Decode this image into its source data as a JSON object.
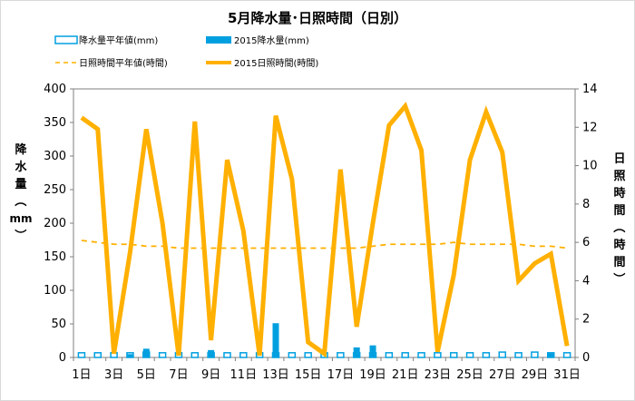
{
  "chart_data": {
    "type": "bar+line",
    "title": "5月降水量･日照時間（日別）",
    "x_ticks": [
      "1日",
      "3日",
      "5日",
      "7日",
      "9日",
      "11日",
      "13日",
      "15日",
      "17日",
      "19日",
      "21日",
      "23日",
      "25日",
      "27日",
      "29日",
      "31日"
    ],
    "days": [
      1,
      2,
      3,
      4,
      5,
      6,
      7,
      8,
      9,
      10,
      11,
      12,
      13,
      14,
      15,
      16,
      17,
      18,
      19,
      20,
      21,
      22,
      23,
      24,
      25,
      26,
      27,
      28,
      29,
      30,
      31
    ],
    "y_left": {
      "label": [
        "降",
        "水",
        "量",
        "（",
        "mm",
        "）"
      ],
      "range": [
        0,
        400
      ],
      "ticks": [
        "0",
        "50",
        "100",
        "150",
        "200",
        "250",
        "300",
        "350",
        "400"
      ]
    },
    "y_right": {
      "label": [
        "日",
        "照",
        "時",
        "間",
        "（",
        "時",
        "間",
        "）"
      ],
      "range": [
        0,
        14
      ],
      "ticks": [
        "0",
        "2",
        "4",
        "6",
        "8",
        "10",
        "12",
        "14"
      ]
    },
    "legend": [
      {
        "key": "precip_normal",
        "text": "降水量平年値(mm)"
      },
      {
        "key": "precip_2015",
        "text": "2015降水量(mm)"
      },
      {
        "key": "sun_normal",
        "text": "日照時間平年値(時間)"
      },
      {
        "key": "sun_2015",
        "text": "2015日照時間(時間)"
      }
    ],
    "series": [
      {
        "name": "降水量平年値(mm)",
        "axis": "left",
        "kind": "bar-outline",
        "color": "#00a0e0",
        "values": [
          7,
          7,
          7,
          7,
          8,
          7,
          7,
          7,
          7,
          7,
          7,
          7,
          7,
          7,
          7,
          7,
          7,
          7,
          7,
          7,
          7,
          7,
          7,
          7,
          7,
          7,
          8,
          7,
          8,
          7,
          7
        ]
      },
      {
        "name": "2015降水量(mm)",
        "axis": "left",
        "kind": "bar",
        "color": "#00a0e0",
        "values": [
          0,
          0,
          0,
          5,
          13,
          0,
          0,
          0,
          11,
          0,
          0,
          0,
          51,
          0,
          0,
          0,
          0,
          15,
          18,
          0,
          0,
          0,
          0,
          0,
          0,
          0,
          0,
          0,
          0,
          6,
          0
        ]
      },
      {
        "name": "日照時間平年値(時間)",
        "axis": "right",
        "kind": "dashed-line",
        "color": "#ffb000",
        "values": [
          6.1,
          6.0,
          5.9,
          5.9,
          5.8,
          5.8,
          5.7,
          5.7,
          5.7,
          5.7,
          5.7,
          5.7,
          5.7,
          5.7,
          5.7,
          5.7,
          5.7,
          5.7,
          5.8,
          5.9,
          5.9,
          5.9,
          5.9,
          6.0,
          5.9,
          5.9,
          5.9,
          5.9,
          5.8,
          5.8,
          5.7
        ]
      },
      {
        "name": "2015日照時間(時間)",
        "axis": "right",
        "kind": "line",
        "color": "#ffb000",
        "values": [
          12.5,
          11.9,
          0.2,
          5.5,
          11.9,
          7.0,
          0.1,
          12.3,
          0.9,
          10.3,
          6.6,
          0.1,
          12.6,
          9.3,
          0.8,
          0.2,
          9.8,
          1.6,
          7.0,
          12.1,
          13.1,
          10.8,
          0.3,
          4.3,
          10.3,
          12.8,
          10.7,
          4.0,
          4.9,
          5.4,
          0.6
        ]
      }
    ],
    "grid": false,
    "legend_position": "top"
  }
}
